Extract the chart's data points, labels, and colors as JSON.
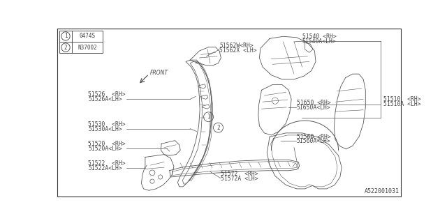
{
  "bg_color": "#ffffff",
  "border_color": "#555555",
  "line_color": "#555555",
  "text_color": "#444444",
  "title": "A522001031",
  "legend_items": [
    {
      "num": "1",
      "code": "0474S"
    },
    {
      "num": "2",
      "code": "N37002"
    }
  ]
}
